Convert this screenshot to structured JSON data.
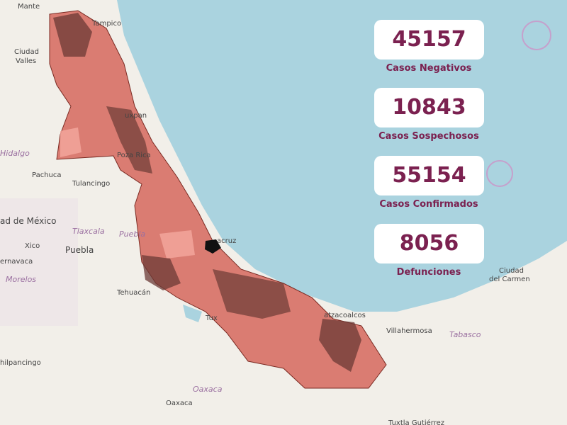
{
  "map": {
    "labels": [
      "Mante",
      "Tampico",
      "Ciudad",
      "Valles",
      "Hidalgo",
      "Pachuca",
      "Tulancingo",
      "ad de México",
      "Tlaxcala",
      "Puebla",
      "Puebla",
      "Xico",
      "ernavaca",
      "Morelos",
      "Tehuacán",
      "uxpan",
      "Poza Rica",
      "acruz",
      "Tux",
      "atzacoalcos",
      "Villahermosa",
      "Tabasco",
      "Ciudad",
      "del Carmen",
      "Oaxaca",
      "Oaxaca",
      "hilpancingo",
      "Tuxtla Gutiérrez"
    ]
  },
  "stats": [
    {
      "value": 45157,
      "label": "Casos Negativos"
    },
    {
      "value": 10843,
      "label": "Casos Sospechosos"
    },
    {
      "value": 55154,
      "label": "Casos Confirmados"
    },
    {
      "value": 8056,
      "label": "Defunciones"
    }
  ]
}
